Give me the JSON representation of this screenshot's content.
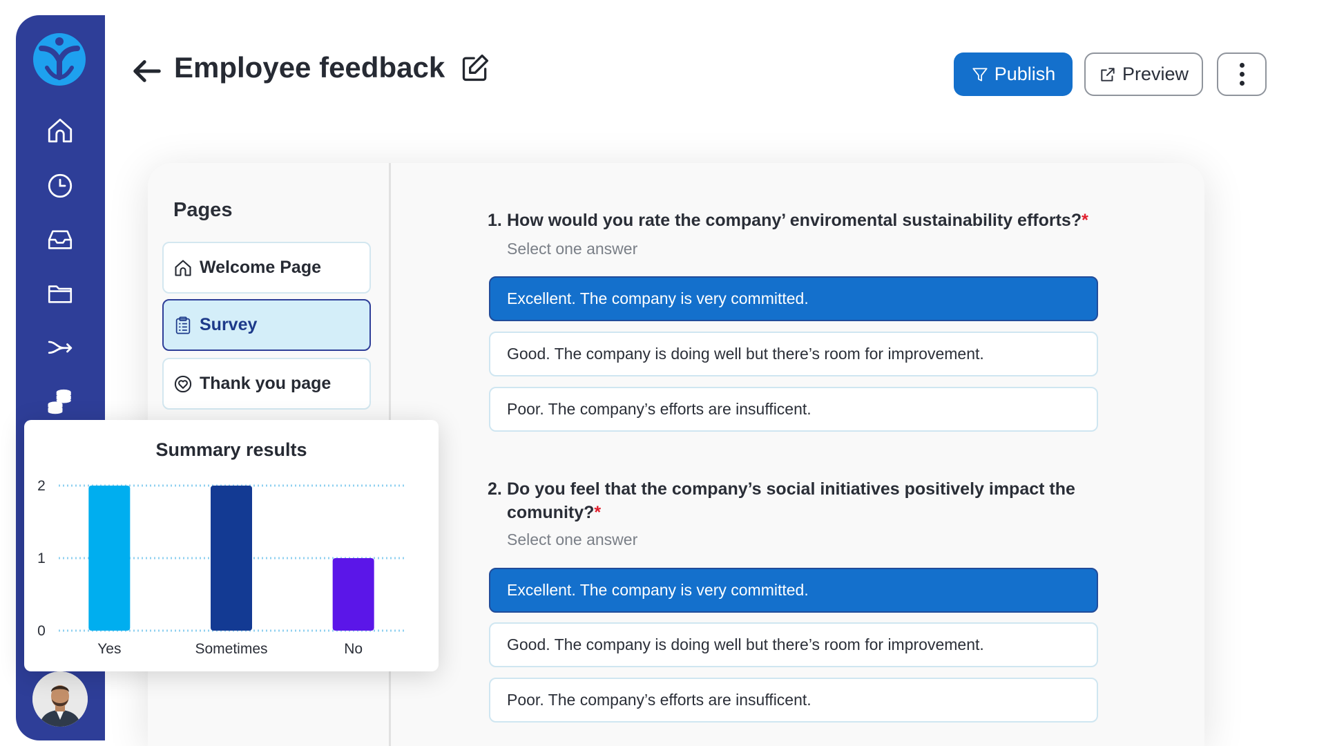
{
  "header": {
    "title": "Employee feedback",
    "publish_label": "Publish",
    "preview_label": "Preview"
  },
  "sidebar": {
    "items": [
      {
        "icon": "home-icon"
      },
      {
        "icon": "clock-icon"
      },
      {
        "icon": "inbox-icon"
      },
      {
        "icon": "folder-icon"
      },
      {
        "icon": "flow-arrow-icon"
      },
      {
        "icon": "coins-icon"
      }
    ]
  },
  "pages_panel": {
    "heading": "Pages",
    "items": [
      {
        "label": "Welcome Page",
        "icon": "home-icon",
        "active": false
      },
      {
        "label": "Survey",
        "icon": "clipboard-icon",
        "active": true
      },
      {
        "label": "Thank you page",
        "icon": "heart-circle-icon",
        "active": false
      }
    ]
  },
  "questions": [
    {
      "number": "1.",
      "text": "How would you rate the company’ enviromental sustainability efforts?",
      "required_mark": "*",
      "hint": "Select one answer",
      "options": [
        {
          "label": "Excellent. The company is very committed.",
          "selected": true
        },
        {
          "label": "Good. The company is doing well but there’s room for improvement.",
          "selected": false
        },
        {
          "label": "Poor. The company’s efforts are insufficent.",
          "selected": false
        }
      ]
    },
    {
      "number": "2.",
      "text": "Do you feel that the company’s social initiatives positively impact the comunity?",
      "required_mark": "*",
      "hint": "Select one answer",
      "options": [
        {
          "label": "Excellent. The company is very committed.",
          "selected": true
        },
        {
          "label": "Good. The company is doing well but there’s room for improvement.",
          "selected": false
        },
        {
          "label": "Poor. The company’s efforts are insufficent.",
          "selected": false
        }
      ]
    }
  ],
  "chart_data": {
    "type": "bar",
    "title": "Summary results",
    "categories": [
      "Yes",
      "Sometimes",
      "No"
    ],
    "values": [
      2,
      2,
      1
    ],
    "colors": [
      "#00aeef",
      "#133a93",
      "#5b16e8"
    ],
    "ylim": [
      0,
      2
    ],
    "yticks": [
      "0",
      "1",
      "2"
    ],
    "grid": true,
    "xlabel": "",
    "ylabel": ""
  },
  "colors": {
    "sidebar": "#2e3e98",
    "accent": "#1470cc",
    "required": "#e11d2b"
  }
}
